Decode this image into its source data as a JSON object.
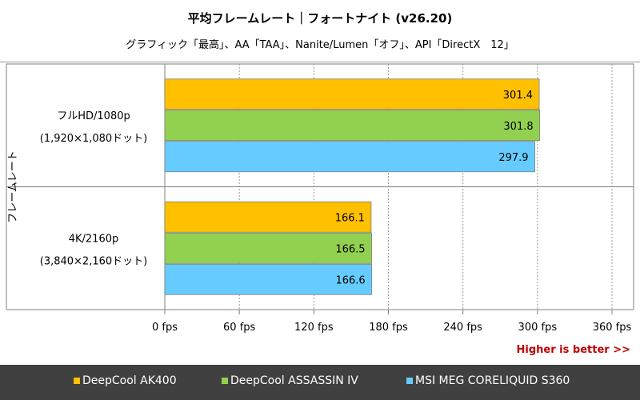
{
  "header": {
    "title": "平均フレームレート｜フォートナイト (v26.20)",
    "subtitle": "グラフィック「最高」、AA「TAA」、Nanite/Lumen「オフ」、API「DirectX　12」"
  },
  "footer": {
    "higher_is_better": "Higher is better >>"
  },
  "colors": {
    "DeepCool AK400": "#FFC000",
    "DeepCool ASSASSIN IV": "#92D050",
    "MSI MEG CORELIQUID S360": "#66CCFF"
  },
  "legend": [
    {
      "label": "DeepCool AK400",
      "color": "#FFC000"
    },
    {
      "label": "DeepCool ASSASSIN IV",
      "color": "#92D050"
    },
    {
      "label": "MSI MEG CORELIQUID S360",
      "color": "#66CCFF"
    }
  ],
  "chart_data": {
    "type": "bar",
    "orientation": "horizontal",
    "title": "平均フレームレート｜フォートナイト (v26.20)",
    "ylabel": "フレームレート",
    "xlabel": "",
    "xlim": [
      0,
      360
    ],
    "xticks": [
      0,
      60,
      120,
      180,
      240,
      300,
      360
    ],
    "xtick_labels": [
      "0 fps",
      "60 fps",
      "120 fps",
      "180 fps",
      "240 fps",
      "300 fps",
      "360 fps"
    ],
    "grid": true,
    "categories": [
      {
        "label_line1": "フルHD/1080p",
        "label_line2": "(1,920×1,080ドット)"
      },
      {
        "label_line1": "4K/2160p",
        "label_line2": "(3,840×2,160ドット)"
      }
    ],
    "series": [
      {
        "name": "DeepCool AK400",
        "color": "#FFC000",
        "values": [
          301.4,
          166.1
        ]
      },
      {
        "name": "DeepCool ASSASSIN IV",
        "color": "#92D050",
        "values": [
          301.8,
          166.5
        ]
      },
      {
        "name": "MSI MEG CORELIQUID S360",
        "color": "#66CCFF",
        "values": [
          297.9,
          166.6
        ]
      }
    ],
    "value_format": "0.0"
  }
}
